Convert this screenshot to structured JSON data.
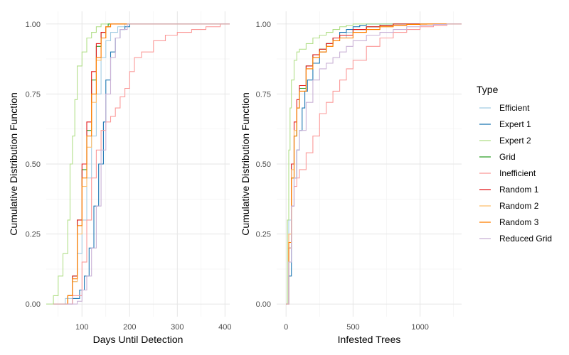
{
  "legend": {
    "title": "Type"
  },
  "chart_data": [
    {
      "type": "line",
      "xlabel": "Days Until Detection",
      "ylabel": "Cumulative Distribution Function",
      "xlim": [
        25,
        410
      ],
      "ylim": [
        0,
        1
      ],
      "x_ticks": [
        100,
        200,
        300,
        400
      ],
      "y_ticks": [
        0,
        0.25,
        0.5,
        0.75,
        1
      ],
      "y_tick_labels": [
        "0.00",
        "0.25",
        "0.50",
        "0.75",
        "1.00"
      ],
      "grid": true,
      "legend_position": "right",
      "series": [
        {
          "name": "Efficient",
          "color": "#a6cee3",
          "x": [
            40,
            65,
            80,
            90,
            100,
            110,
            120,
            130,
            140,
            150,
            160,
            175,
            190,
            200
          ],
          "y": [
            0,
            0.02,
            0.08,
            0.18,
            0.3,
            0.45,
            0.6,
            0.75,
            0.88,
            0.94,
            0.97,
            0.99,
            1,
            1
          ]
        },
        {
          "name": "Expert 1",
          "color": "#1f78b4",
          "x": [
            40,
            80,
            95,
            105,
            115,
            125,
            135,
            145,
            150,
            160,
            170,
            180,
            190,
            200
          ],
          "y": [
            0,
            0.02,
            0.05,
            0.1,
            0.2,
            0.35,
            0.5,
            0.65,
            0.8,
            0.9,
            0.95,
            0.98,
            0.99,
            1
          ]
        },
        {
          "name": "Expert 2",
          "color": "#b2df8a",
          "x": [
            25,
            40,
            50,
            60,
            70,
            75,
            80,
            85,
            90,
            100,
            110,
            120,
            130,
            140
          ],
          "y": [
            0,
            0.03,
            0.1,
            0.18,
            0.3,
            0.5,
            0.6,
            0.73,
            0.85,
            0.9,
            0.95,
            0.97,
            0.99,
            1
          ]
        },
        {
          "name": "Grid",
          "color": "#33a02c",
          "x": [
            40,
            70,
            80,
            90,
            100,
            110,
            120,
            130,
            140,
            150,
            155
          ],
          "y": [
            0,
            0.03,
            0.1,
            0.3,
            0.48,
            0.62,
            0.8,
            0.92,
            0.97,
            0.99,
            1
          ]
        },
        {
          "name": "Inefficient",
          "color": "#fb9a99",
          "x": [
            40,
            80,
            100,
            110,
            120,
            130,
            140,
            150,
            160,
            170,
            180,
            190,
            200,
            210,
            225,
            250,
            275,
            300,
            330,
            360,
            390,
            405
          ],
          "y": [
            0,
            0.03,
            0.15,
            0.3,
            0.45,
            0.55,
            0.62,
            0.65,
            0.67,
            0.7,
            0.74,
            0.77,
            0.83,
            0.88,
            0.9,
            0.94,
            0.96,
            0.97,
            0.98,
            0.99,
            1,
            1
          ]
        },
        {
          "name": "Random 1",
          "color": "#e31a1c",
          "x": [
            40,
            70,
            80,
            90,
            100,
            110,
            120,
            130,
            140,
            150,
            160
          ],
          "y": [
            0,
            0.03,
            0.1,
            0.3,
            0.5,
            0.65,
            0.83,
            0.93,
            0.97,
            0.99,
            1
          ]
        },
        {
          "name": "Random 2",
          "color": "#fdbf6f",
          "x": [
            40,
            70,
            80,
            90,
            100,
            110,
            120,
            130,
            140,
            150,
            160
          ],
          "y": [
            0,
            0.03,
            0.08,
            0.25,
            0.42,
            0.56,
            0.72,
            0.87,
            0.95,
            0.99,
            1
          ]
        },
        {
          "name": "Random 3",
          "color": "#ff7f00",
          "x": [
            40,
            70,
            80,
            90,
            100,
            110,
            120,
            130,
            140,
            150,
            160
          ],
          "y": [
            0,
            0.03,
            0.09,
            0.28,
            0.45,
            0.6,
            0.75,
            0.88,
            0.95,
            0.99,
            1
          ]
        },
        {
          "name": "Reduced Grid",
          "color": "#cab2d6",
          "x": [
            40,
            90,
            100,
            110,
            120,
            130,
            140,
            150,
            160,
            170,
            180,
            195
          ],
          "y": [
            0,
            0.01,
            0.05,
            0.1,
            0.2,
            0.35,
            0.55,
            0.75,
            0.88,
            0.95,
            0.98,
            1
          ]
        }
      ]
    },
    {
      "type": "line",
      "xlabel": "Infested Trees",
      "ylabel": "Cumulative Distribution Function",
      "xlim": [
        -70,
        1310
      ],
      "ylim": [
        0,
        1
      ],
      "x_ticks": [
        0,
        500,
        1000
      ],
      "y_ticks": [
        0,
        0.25,
        0.5,
        0.75,
        1
      ],
      "y_tick_labels": [
        "0.00",
        "0.25",
        "0.50",
        "0.75",
        "1.00"
      ],
      "grid": true,
      "legend_position": "right",
      "series": [
        {
          "name": "Efficient",
          "color": "#a6cee3",
          "x": [
            0,
            20,
            40,
            60,
            80,
            100,
            150,
            200,
            250,
            300,
            350,
            400,
            450,
            500,
            600,
            700,
            800
          ],
          "y": [
            0,
            0.3,
            0.5,
            0.6,
            0.7,
            0.77,
            0.85,
            0.88,
            0.9,
            0.92,
            0.94,
            0.95,
            0.97,
            0.98,
            0.99,
            1,
            1
          ]
        },
        {
          "name": "Expert 1",
          "color": "#1f78b4",
          "x": [
            0,
            20,
            40,
            60,
            80,
            100,
            120,
            140,
            160,
            200,
            250,
            300,
            350,
            400,
            450,
            500,
            550,
            600
          ],
          "y": [
            0,
            0.1,
            0.35,
            0.45,
            0.55,
            0.62,
            0.7,
            0.76,
            0.8,
            0.86,
            0.9,
            0.93,
            0.95,
            0.97,
            0.98,
            0.99,
            0.995,
            1
          ]
        },
        {
          "name": "Expert 2",
          "color": "#b2df8a",
          "x": [
            0,
            10,
            20,
            30,
            40,
            60,
            80,
            100,
            150,
            200,
            250,
            300,
            350,
            400,
            450,
            500
          ],
          "y": [
            0,
            0.3,
            0.55,
            0.7,
            0.8,
            0.87,
            0.9,
            0.91,
            0.93,
            0.95,
            0.96,
            0.97,
            0.98,
            0.99,
            0.995,
            1
          ]
        },
        {
          "name": "Grid",
          "color": "#33a02c",
          "x": [
            0,
            20,
            40,
            60,
            80,
            100,
            150,
            200,
            250,
            300,
            350,
            400,
            500,
            600,
            700,
            800
          ],
          "y": [
            0,
            0.2,
            0.45,
            0.6,
            0.7,
            0.77,
            0.85,
            0.89,
            0.91,
            0.93,
            0.95,
            0.96,
            0.98,
            0.99,
            0.995,
            1
          ]
        },
        {
          "name": "Inefficient",
          "color": "#fb9a99",
          "x": [
            0,
            20,
            40,
            60,
            80,
            100,
            150,
            200,
            250,
            300,
            350,
            400,
            450,
            500,
            600,
            700,
            800,
            900,
            1000,
            1100,
            1200,
            1250
          ],
          "y": [
            0,
            0.2,
            0.35,
            0.42,
            0.45,
            0.48,
            0.54,
            0.6,
            0.68,
            0.72,
            0.76,
            0.8,
            0.84,
            0.87,
            0.92,
            0.95,
            0.97,
            0.98,
            0.99,
            0.995,
            1,
            1
          ]
        },
        {
          "name": "Random 1",
          "color": "#e31a1c",
          "x": [
            0,
            20,
            40,
            60,
            80,
            100,
            150,
            200,
            250,
            300,
            350,
            400,
            500,
            600,
            700,
            800
          ],
          "y": [
            0,
            0.25,
            0.5,
            0.65,
            0.73,
            0.78,
            0.85,
            0.89,
            0.91,
            0.93,
            0.95,
            0.96,
            0.98,
            0.99,
            0.995,
            1
          ]
        },
        {
          "name": "Random 2",
          "color": "#fdbf6f",
          "x": [
            0,
            20,
            40,
            60,
            80,
            100,
            150,
            200,
            250,
            300,
            350,
            400,
            500,
            600,
            700,
            800,
            900,
            1000
          ],
          "y": [
            0,
            0.25,
            0.48,
            0.62,
            0.7,
            0.76,
            0.84,
            0.88,
            0.9,
            0.92,
            0.94,
            0.95,
            0.97,
            0.98,
            0.99,
            0.995,
            0.998,
            1
          ]
        },
        {
          "name": "Random 3",
          "color": "#ff7f00",
          "x": [
            0,
            20,
            40,
            60,
            80,
            100,
            150,
            200,
            250,
            300,
            350,
            400,
            500,
            600,
            700,
            800,
            900,
            1000,
            1050
          ],
          "y": [
            0,
            0.22,
            0.45,
            0.6,
            0.7,
            0.76,
            0.84,
            0.88,
            0.9,
            0.92,
            0.94,
            0.95,
            0.97,
            0.98,
            0.99,
            0.995,
            0.998,
            0.999,
            1
          ]
        },
        {
          "name": "Reduced Grid",
          "color": "#cab2d6",
          "x": [
            0,
            20,
            40,
            60,
            80,
            100,
            150,
            200,
            250,
            300,
            350,
            400,
            450,
            500,
            600,
            700,
            800,
            900,
            1000,
            1100,
            1200
          ],
          "y": [
            0,
            0.15,
            0.35,
            0.45,
            0.55,
            0.62,
            0.72,
            0.8,
            0.84,
            0.86,
            0.88,
            0.9,
            0.92,
            0.94,
            0.96,
            0.97,
            0.98,
            0.99,
            0.995,
            0.998,
            1
          ]
        }
      ]
    }
  ]
}
